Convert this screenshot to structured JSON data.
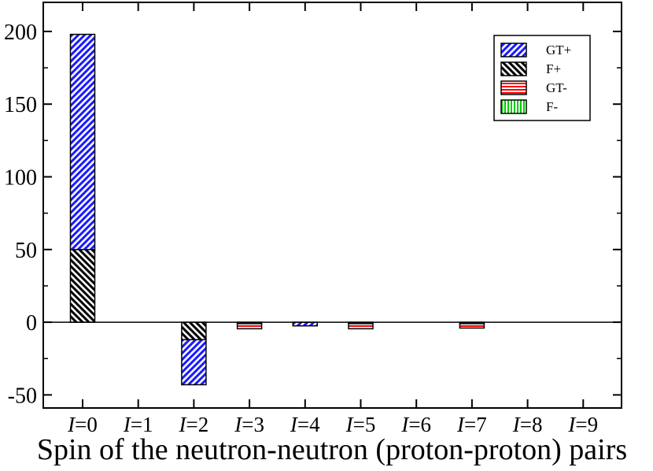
{
  "chart_data": {
    "type": "bar",
    "stacked": true,
    "categories": [
      "I=0",
      "I=1",
      "I=2",
      "I=3",
      "I=4",
      "I=5",
      "I=6",
      "I=7",
      "I=8",
      "I=9"
    ],
    "category_labels": [
      {
        "italic": "I",
        "rest": "=0"
      },
      {
        "italic": "I",
        "rest": "=1"
      },
      {
        "italic": "I",
        "rest": "=2"
      },
      {
        "italic": "I",
        "rest": "=3"
      },
      {
        "italic": "I",
        "rest": "=4"
      },
      {
        "italic": "I",
        "rest": "=5"
      },
      {
        "italic": "I",
        "rest": "=6"
      },
      {
        "italic": "I",
        "rest": "=7"
      },
      {
        "italic": "I",
        "rest": "=8"
      },
      {
        "italic": "I",
        "rest": "=9"
      }
    ],
    "series": [
      {
        "name": "GT+",
        "color": "#1a1aff",
        "pattern": "diagonal-up",
        "values": [
          148,
          0,
          -31,
          0,
          -2.5,
          0,
          0,
          0,
          0,
          0
        ]
      },
      {
        "name": "F+",
        "color": "#000000",
        "pattern": "diagonal-down",
        "values": [
          50,
          0,
          -12,
          0,
          0,
          0,
          0,
          0,
          0,
          0
        ]
      },
      {
        "name": "GT-",
        "color": "#ff0000",
        "pattern": "horizontal",
        "values": [
          0,
          0,
          0,
          -3.5,
          0,
          -3.5,
          0,
          -3,
          0,
          0
        ]
      },
      {
        "name": "F-",
        "color": "#00cc00",
        "pattern": "vertical",
        "values": [
          0,
          0,
          0,
          -1,
          0,
          -1,
          0,
          -1,
          0,
          0
        ]
      }
    ],
    "stack_order": [
      "F+",
      "GT+",
      "F-",
      "GT-"
    ],
    "yticks": [
      -50,
      0,
      50,
      100,
      150,
      200
    ],
    "ylim": [
      -59,
      220
    ],
    "xlabel": "Spin of the neutron-neutron (proton-proton) pairs",
    "ylabel": "",
    "title": "",
    "grid": false,
    "legend_position": "top-right",
    "zero_line": true
  }
}
